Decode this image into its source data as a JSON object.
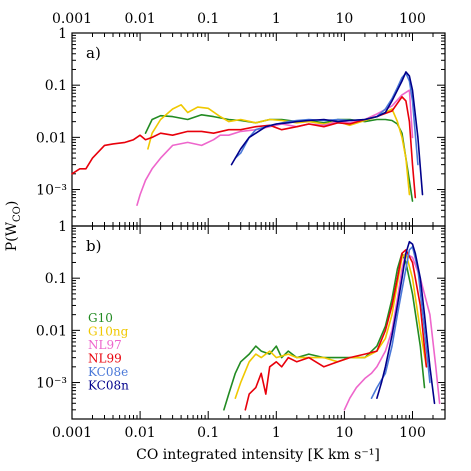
{
  "chart_data": {
    "type": "line",
    "xlabel": "CO integrated intensity [K km s⁻¹]",
    "ylabel": "P(W",
    "ylabel_sub": "CO",
    "ylabel_close": ")",
    "x_scale": "log",
    "xlim": [
      0.001,
      300
    ],
    "x_tick_labels": [
      "0.001",
      "0.01",
      "0.1",
      "1",
      "10",
      "100"
    ],
    "y_scale": "log",
    "colors": {
      "G10": "#228b22",
      "G10ng": "#f0c800",
      "NL97": "#ee66cc",
      "NL99": "#e8000b",
      "KC08e": "#4a78d8",
      "KC08n": "#00008b"
    },
    "legend": {
      "placement": "panel-b-left",
      "entries": [
        "G10",
        "G10ng",
        "NL97",
        "NL99",
        "KC08e",
        "KC08n"
      ]
    },
    "panels": [
      {
        "label": "a)",
        "ylim": [
          0.0002,
          1
        ],
        "y_tick_labels": [
          "10⁻³",
          "0.01",
          "0.1",
          "1"
        ],
        "y_tick_values": [
          0.001,
          0.01,
          0.1,
          1
        ],
        "series": [
          {
            "name": "G10",
            "x": [
              0.012,
              0.015,
              0.02,
              0.03,
              0.05,
              0.08,
              0.12,
              0.2,
              0.3,
              0.5,
              0.8,
              1.2,
              2,
              3,
              5,
              8,
              12,
              20,
              30,
              40,
              50,
              60,
              70,
              80,
              100
            ],
            "y": [
              0.012,
              0.022,
              0.026,
              0.025,
              0.022,
              0.027,
              0.025,
              0.022,
              0.021,
              0.019,
              0.022,
              0.022,
              0.02,
              0.021,
              0.019,
              0.022,
              0.022,
              0.02,
              0.022,
              0.022,
              0.021,
              0.018,
              0.012,
              0.004,
              0.0006
            ]
          },
          {
            "name": "G10ng",
            "x": [
              0.013,
              0.015,
              0.02,
              0.03,
              0.04,
              0.05,
              0.07,
              0.1,
              0.15,
              0.2,
              0.3,
              0.5,
              0.8,
              1.2,
              2,
              3,
              5,
              8,
              12,
              20,
              30,
              40,
              50,
              60,
              70,
              80,
              90
            ],
            "y": [
              0.006,
              0.012,
              0.022,
              0.035,
              0.042,
              0.03,
              0.038,
              0.036,
              0.025,
              0.02,
              0.022,
              0.019,
              0.022,
              0.021,
              0.019,
              0.02,
              0.018,
              0.02,
              0.017,
              0.021,
              0.025,
              0.03,
              0.035,
              0.02,
              0.01,
              0.004,
              0.0008
            ]
          },
          {
            "name": "NL97",
            "x": [
              0.009,
              0.01,
              0.012,
              0.015,
              0.02,
              0.03,
              0.05,
              0.08,
              0.12,
              0.15,
              0.2,
              0.3,
              0.5,
              0.8,
              1.2,
              2,
              3,
              5,
              8,
              12,
              20,
              30,
              50,
              70,
              90,
              100
            ],
            "y": [
              0.0005,
              0.0008,
              0.0015,
              0.0025,
              0.004,
              0.007,
              0.008,
              0.007,
              0.009,
              0.011,
              0.011,
              0.013,
              0.014,
              0.016,
              0.018,
              0.016,
              0.018,
              0.017,
              0.02,
              0.019,
              0.022,
              0.028,
              0.04,
              0.065,
              0.08,
              0.01
            ]
          },
          {
            "name": "NL99",
            "x": [
              0.001,
              0.0013,
              0.0016,
              0.002,
              0.003,
              0.004,
              0.006,
              0.008,
              0.01,
              0.012,
              0.015,
              0.02,
              0.03,
              0.05,
              0.08,
              0.12,
              0.2,
              0.3,
              0.5,
              0.8,
              1.2,
              2,
              3,
              5,
              8,
              12,
              20,
              30,
              50,
              70,
              80,
              90,
              100,
              110
            ],
            "y": [
              0.002,
              0.0025,
              0.0025,
              0.004,
              0.007,
              0.0075,
              0.008,
              0.009,
              0.011,
              0.009,
              0.01,
              0.012,
              0.011,
              0.013,
              0.013,
              0.012,
              0.014,
              0.014,
              0.016,
              0.017,
              0.014,
              0.016,
              0.018,
              0.016,
              0.019,
              0.018,
              0.022,
              0.025,
              0.032,
              0.06,
              0.05,
              0.02,
              0.003,
              0.0007
            ]
          },
          {
            "name": "KC08e",
            "x": [
              0.25,
              0.3,
              0.4,
              0.5,
              0.7,
              1,
              1.5,
              2,
              3,
              5,
              8,
              12,
              20,
              30,
              40,
              50,
              60,
              70,
              80,
              90,
              100,
              120
            ],
            "y": [
              0.004,
              0.005,
              0.01,
              0.014,
              0.016,
              0.018,
              0.02,
              0.021,
              0.022,
              0.021,
              0.022,
              0.021,
              0.022,
              0.025,
              0.035,
              0.055,
              0.09,
              0.14,
              0.17,
              0.12,
              0.05,
              0.003
            ]
          },
          {
            "name": "KC08n",
            "x": [
              0.22,
              0.25,
              0.3,
              0.4,
              0.5,
              0.7,
              1,
              1.5,
              2,
              3,
              5,
              8,
              12,
              20,
              30,
              40,
              50,
              60,
              70,
              80,
              90,
              100,
              120,
              140
            ],
            "y": [
              0.003,
              0.004,
              0.006,
              0.01,
              0.012,
              0.016,
              0.018,
              0.019,
              0.02,
              0.021,
              0.022,
              0.02,
              0.021,
              0.022,
              0.025,
              0.03,
              0.05,
              0.08,
              0.12,
              0.18,
              0.15,
              0.08,
              0.01,
              0.0008
            ]
          }
        ]
      },
      {
        "label": "b)",
        "ylim": [
          0.0002,
          1
        ],
        "y_tick_labels": [
          "10⁻³",
          "0.01",
          "0.1",
          "1"
        ],
        "y_tick_values": [
          0.001,
          0.01,
          0.1,
          1
        ],
        "series": [
          {
            "name": "G10",
            "x": [
              0.17,
              0.2,
              0.25,
              0.3,
              0.4,
              0.5,
              0.6,
              0.8,
              1,
              1.2,
              1.5,
              2,
              3,
              5,
              8,
              12,
              20,
              30,
              40,
              50,
              60,
              70,
              80,
              100,
              130,
              150
            ],
            "y": [
              0.0003,
              0.0006,
              0.0015,
              0.0025,
              0.0035,
              0.005,
              0.004,
              0.0035,
              0.005,
              0.003,
              0.004,
              0.003,
              0.0035,
              0.003,
              0.003,
              0.003,
              0.003,
              0.005,
              0.012,
              0.04,
              0.15,
              0.3,
              0.2,
              0.05,
              0.005,
              0.0008
            ]
          },
          {
            "name": "G10ng",
            "x": [
              0.25,
              0.3,
              0.4,
              0.5,
              0.6,
              0.8,
              1,
              1.5,
              2,
              3,
              5,
              8,
              12,
              20,
              30,
              40,
              50,
              60,
              70,
              80,
              100,
              130,
              160
            ],
            "y": [
              0.0005,
              0.001,
              0.0025,
              0.0035,
              0.003,
              0.004,
              0.003,
              0.0035,
              0.003,
              0.003,
              0.003,
              0.0025,
              0.003,
              0.003,
              0.004,
              0.007,
              0.02,
              0.08,
              0.25,
              0.3,
              0.1,
              0.01,
              0.002
            ]
          },
          {
            "name": "NL97",
            "x": [
              10,
              12,
              15,
              20,
              25,
              30,
              40,
              50,
              60,
              70,
              80,
              100,
              130,
              180,
              220,
              250
            ],
            "y": [
              0.0003,
              0.0005,
              0.0008,
              0.0012,
              0.0015,
              0.002,
              0.004,
              0.01,
              0.04,
              0.15,
              0.3,
              0.25,
              0.1,
              0.02,
              0.002,
              0.0004
            ]
          },
          {
            "name": "NL99",
            "x": [
              0.35,
              0.4,
              0.5,
              0.6,
              0.7,
              0.8,
              1,
              1.2,
              1.5,
              2,
              3,
              5,
              8,
              12,
              20,
              30,
              40,
              50,
              60,
              70,
              80,
              100,
              130,
              160
            ],
            "y": [
              0.0003,
              0.0006,
              0.0008,
              0.0015,
              0.0006,
              0.002,
              0.0025,
              0.002,
              0.003,
              0.0025,
              0.003,
              0.002,
              0.0025,
              0.003,
              0.0035,
              0.004,
              0.01,
              0.03,
              0.1,
              0.3,
              0.35,
              0.2,
              0.03,
              0.002
            ]
          },
          {
            "name": "KC08e",
            "x": [
              25,
              30,
              40,
              50,
              60,
              70,
              80,
              90,
              100,
              120,
              150,
              180
            ],
            "y": [
              0.0005,
              0.0008,
              0.0015,
              0.005,
              0.02,
              0.06,
              0.15,
              0.35,
              0.4,
              0.15,
              0.01,
              0.001
            ]
          },
          {
            "name": "KC08n",
            "x": [
              30,
              35,
              40,
              50,
              60,
              70,
              80,
              90,
              100,
              110,
              130,
              150,
              180,
              210
            ],
            "y": [
              0.0005,
              0.001,
              0.002,
              0.008,
              0.03,
              0.1,
              0.3,
              0.5,
              0.45,
              0.3,
              0.1,
              0.02,
              0.002,
              0.0004
            ]
          }
        ]
      }
    ]
  }
}
